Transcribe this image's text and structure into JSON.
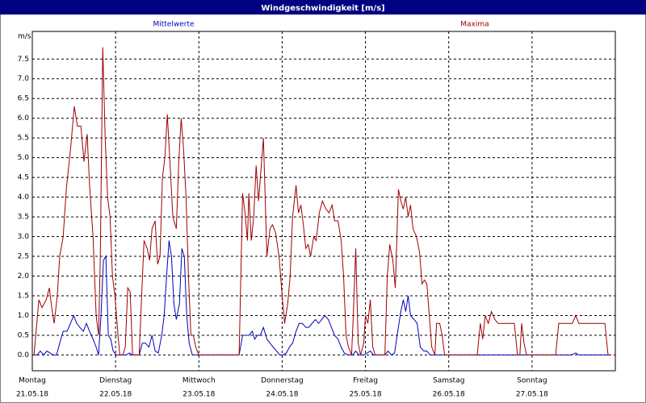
{
  "chart_data": {
    "type": "line",
    "title": "Windgeschwindigkeit [m/s]",
    "y_label": "m/s",
    "xlim": [
      0,
      168
    ],
    "xticks": [
      {
        "value": 0,
        "label": "Montag"
      },
      {
        "value": 24,
        "label": "Dienstag"
      },
      {
        "value": 48,
        "label": "Mittwoch"
      },
      {
        "value": 72,
        "label": "Donnerstag"
      },
      {
        "value": 96,
        "label": "Freitag"
      },
      {
        "value": 120,
        "label": "Samstag"
      },
      {
        "value": 144,
        "label": "Sonntag"
      }
    ],
    "xtick_dates": [
      "21.05.18",
      "22.05.18",
      "23.05.18",
      "24.05.18",
      "25.05.18",
      "26.05.18",
      "27.05.18"
    ],
    "ylim": [
      -0.4,
      8.2
    ],
    "yticks": [
      {
        "value": 0,
        "label": "0.0"
      },
      {
        "value": 0.5,
        "label": "0.5"
      },
      {
        "value": 1,
        "label": "1.0"
      },
      {
        "value": 1.5,
        "label": "1.5"
      },
      {
        "value": 2,
        "label": "2.0"
      },
      {
        "value": 2.5,
        "label": "2.5"
      },
      {
        "value": 3,
        "label": "3.0"
      },
      {
        "value": 3.5,
        "label": "3.5"
      },
      {
        "value": 4,
        "label": "4.0"
      },
      {
        "value": 4.5,
        "label": "4.5"
      },
      {
        "value": 5,
        "label": "5.0"
      },
      {
        "value": 5.5,
        "label": "5.5"
      },
      {
        "value": 6,
        "label": "6.0"
      },
      {
        "value": 6.5,
        "label": "6.5"
      },
      {
        "value": 7,
        "label": "7.0"
      },
      {
        "value": 7.5,
        "label": "7.5"
      }
    ],
    "grid": true,
    "series": [
      {
        "name": "Mittelwerte",
        "color": "#0000c0",
        "x": [
          0.5,
          1.4,
          2.3,
          3.3,
          4.2,
          5.1,
          6.1,
          7.0,
          7.9,
          8.9,
          10.0,
          11.0,
          11.9,
          12.8,
          13.7,
          14.7,
          15.6,
          16.5,
          17.5,
          18.4,
          19.1,
          19.8,
          20.5,
          21.2,
          21.9,
          22.6,
          23.3,
          24.2,
          25.6,
          27.0,
          28.0,
          28.9,
          30.8,
          31.7,
          32.6,
          33.6,
          34.5,
          35.4,
          36.3,
          37.3,
          38.0,
          38.7,
          39.4,
          40.1,
          40.8,
          41.5,
          42.4,
          43.1,
          43.8,
          44.5,
          45.2,
          46.1,
          59.6,
          60.6,
          61.5,
          62.4,
          63.4,
          64.1,
          64.8,
          65.7,
          66.6,
          67.6,
          68.5,
          69.4,
          70.4,
          71.3,
          72.2,
          73.2,
          74.1,
          75.0,
          76.0,
          76.9,
          77.8,
          78.8,
          79.7,
          80.6,
          81.6,
          82.5,
          83.4,
          84.3,
          85.3,
          86.2,
          87.1,
          88.1,
          89.0,
          89.9,
          90.9,
          92.3,
          93.2,
          94.1,
          95.5,
          96.5,
          97.4,
          98.3,
          101.6,
          102.5,
          103.5,
          104.4,
          105.3,
          106.2,
          106.9,
          107.6,
          108.3,
          109.0,
          110.0,
          110.9,
          111.8,
          112.8,
          113.7,
          114.6,
          118.8,
          155.2,
          156.6,
          157.5,
          166.8
        ],
        "values": [
          0.0,
          0.0,
          0.1,
          0.0,
          0.1,
          0.05,
          0.0,
          0.0,
          0.3,
          0.6,
          0.6,
          0.8,
          1.0,
          0.8,
          0.7,
          0.6,
          0.8,
          0.6,
          0.4,
          0.2,
          0.0,
          1.0,
          2.4,
          2.5,
          0.5,
          0.4,
          0.1,
          0.0,
          0.0,
          0.0,
          0.05,
          0.0,
          0.0,
          0.3,
          0.3,
          0.2,
          0.5,
          0.1,
          0.05,
          0.5,
          1.0,
          2.0,
          2.9,
          2.5,
          1.3,
          0.9,
          1.3,
          2.7,
          2.5,
          1.0,
          0.3,
          0.0,
          0.0,
          0.5,
          0.5,
          0.5,
          0.6,
          0.4,
          0.5,
          0.5,
          0.7,
          0.4,
          0.3,
          0.2,
          0.1,
          0.0,
          0.0,
          0.05,
          0.2,
          0.3,
          0.6,
          0.8,
          0.8,
          0.7,
          0.7,
          0.8,
          0.9,
          0.8,
          0.9,
          1.0,
          0.9,
          0.7,
          0.5,
          0.4,
          0.2,
          0.05,
          0.0,
          0.0,
          0.1,
          0.0,
          0.0,
          0.05,
          0.1,
          0.0,
          0.0,
          0.1,
          0.0,
          0.05,
          0.6,
          1.1,
          1.4,
          1.1,
          1.5,
          1.0,
          0.9,
          0.8,
          0.2,
          0.1,
          0.1,
          0.0,
          0.0,
          0.0,
          0.05,
          0.0,
          0.0
        ]
      },
      {
        "name": "Maxima",
        "color": "#a00000",
        "x": [
          0.5,
          1.9,
          2.8,
          4.0,
          4.9,
          5.6,
          6.3,
          7.2,
          7.9,
          8.9,
          9.8,
          11.0,
          12.1,
          13.0,
          14.0,
          14.9,
          15.8,
          16.5,
          17.5,
          18.4,
          19.1,
          19.6,
          20.3,
          21.0,
          21.7,
          22.4,
          23.1,
          23.8,
          24.7,
          25.2,
          26.1,
          26.8,
          27.5,
          28.2,
          28.9,
          30.8,
          31.5,
          32.2,
          33.1,
          33.8,
          34.5,
          35.4,
          36.1,
          36.8,
          37.5,
          38.2,
          38.9,
          39.6,
          40.5,
          41.5,
          42.2,
          42.9,
          43.6,
          44.3,
          45.0,
          45.7,
          46.4,
          47.1,
          48.0,
          59.6,
          60.6,
          61.3,
          62.0,
          62.4,
          63.1,
          63.8,
          64.5,
          65.2,
          65.9,
          66.6,
          67.6,
          68.5,
          69.2,
          70.1,
          71.1,
          72.0,
          72.7,
          73.6,
          74.3,
          75.0,
          76.0,
          76.7,
          77.4,
          78.1,
          78.8,
          79.5,
          80.2,
          81.1,
          81.8,
          82.7,
          83.6,
          84.6,
          85.5,
          86.4,
          87.1,
          88.1,
          89.0,
          89.7,
          90.4,
          91.1,
          92.0,
          92.5,
          93.2,
          93.9,
          94.6,
          95.5,
          96.0,
          96.7,
          97.4,
          98.1,
          98.8,
          101.6,
          102.3,
          103.0,
          103.9,
          104.6,
          105.5,
          106.2,
          106.9,
          107.6,
          108.3,
          109.0,
          109.7,
          110.7,
          111.6,
          112.3,
          113.0,
          113.7,
          114.4,
          115.1,
          116.0,
          116.5,
          117.4,
          118.1,
          118.8,
          128.2,
          129.1,
          129.8,
          130.5,
          131.4,
          132.3,
          133.3,
          134.2,
          135.6,
          137.0,
          138.9,
          139.8,
          140.5,
          141.0,
          141.7,
          142.4,
          150.8,
          151.7,
          153.8,
          155.6,
          156.6,
          157.5,
          159.8,
          163.1,
          165.0,
          165.9,
          166.8
        ],
        "values": [
          0.0,
          1.4,
          1.2,
          1.4,
          1.7,
          1.2,
          0.8,
          1.5,
          2.5,
          3.0,
          4.2,
          5.2,
          6.3,
          5.8,
          5.8,
          4.9,
          5.6,
          4.3,
          3.0,
          1.0,
          0.5,
          2.5,
          7.8,
          5.5,
          4.0,
          3.5,
          2.0,
          1.5,
          0.5,
          0.0,
          0.0,
          0.2,
          1.7,
          1.6,
          0.0,
          0.0,
          1.5,
          2.9,
          2.7,
          2.4,
          3.2,
          3.4,
          2.3,
          2.5,
          4.5,
          5.0,
          6.1,
          5.0,
          3.5,
          3.2,
          4.9,
          6.0,
          5.2,
          4.0,
          2.0,
          0.5,
          0.5,
          0.2,
          0.0,
          0.0,
          4.1,
          3.6,
          2.9,
          4.1,
          2.9,
          3.5,
          4.8,
          3.9,
          4.7,
          5.5,
          2.5,
          3.2,
          3.3,
          3.1,
          2.5,
          1.5,
          0.8,
          1.3,
          2.0,
          3.5,
          4.3,
          3.6,
          3.8,
          3.3,
          2.7,
          2.8,
          2.5,
          3.0,
          2.9,
          3.6,
          3.9,
          3.7,
          3.6,
          3.8,
          3.4,
          3.4,
          2.9,
          2.0,
          0.5,
          0.2,
          0.0,
          1.0,
          2.7,
          0.3,
          0.0,
          0.3,
          1.0,
          0.8,
          1.4,
          0.2,
          0.0,
          0.0,
          2.0,
          2.8,
          2.4,
          1.7,
          4.2,
          3.9,
          3.7,
          4.0,
          3.5,
          3.8,
          3.2,
          3.0,
          2.6,
          1.8,
          1.9,
          1.8,
          1.0,
          0.2,
          0.0,
          0.8,
          0.8,
          0.5,
          0.0,
          0.0,
          0.8,
          0.4,
          1.0,
          0.8,
          1.1,
          0.9,
          0.8,
          0.8,
          0.8,
          0.8,
          0.0,
          0.0,
          0.8,
          0.3,
          0.0,
          0.0,
          0.8,
          0.8,
          0.8,
          1.0,
          0.8,
          0.8,
          0.8,
          0.8,
          0.0,
          0.0
        ]
      }
    ]
  }
}
